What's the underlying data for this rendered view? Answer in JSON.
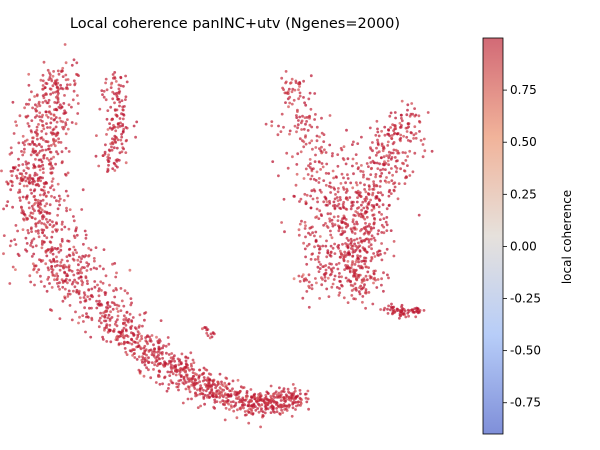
{
  "chart_data": {
    "type": "scatter",
    "title": "Local coherence panINC+utv (Ngenes=2000)",
    "xlabel": "",
    "ylabel": "",
    "axes_visible": false,
    "grid": false,
    "colormap": "coolwarm",
    "point_alpha": 0.7,
    "colorbar": {
      "label": "local coherence",
      "range": [
        -0.9,
        1.0
      ],
      "ticks": [
        "0.75",
        "0.50",
        "0.25",
        "0.00",
        "-0.25",
        "-0.50",
        "-0.75"
      ],
      "tick_values": [
        0.75,
        0.5,
        0.25,
        0.0,
        -0.25,
        -0.5,
        -0.75
      ],
      "placement": "right"
    },
    "xlim": [
      0,
      100
    ],
    "ylim": [
      0,
      100
    ],
    "clusters": [
      {
        "points": 1700,
        "coherence_mean": 0.9,
        "path": [
          [
            8,
            97
          ],
          [
            3,
            80
          ],
          [
            1,
            65
          ],
          [
            4,
            48
          ],
          [
            12,
            38
          ],
          [
            23,
            25
          ],
          [
            33,
            15
          ],
          [
            45,
            8
          ],
          [
            55,
            4
          ],
          [
            66,
            6
          ]
        ],
        "spread": [
          2.5,
          3.5,
          3.5,
          5.0,
          4.0,
          3.0,
          2.5,
          2.5,
          2.0,
          1.5
        ]
      },
      {
        "points": 150,
        "coherence_mean": 0.9,
        "path": [
          [
            21,
            95
          ],
          [
            22,
            82
          ],
          [
            20,
            70
          ]
        ],
        "spread": [
          1.5,
          1.8,
          1.5
        ]
      },
      {
        "points": 450,
        "coherence_mean": 0.9,
        "path": [
          [
            64,
            95
          ],
          [
            67,
            80
          ],
          [
            72,
            65
          ],
          [
            76,
            56
          ],
          [
            74,
            45
          ],
          [
            70,
            38
          ]
        ],
        "spread": [
          1.5,
          3.5,
          4.5,
          5.0,
          4.0,
          3.0
        ]
      },
      {
        "points": 550,
        "coherence_mean": 0.9,
        "path": [
          [
            92,
            85
          ],
          [
            87,
            72
          ],
          [
            82,
            60
          ],
          [
            80,
            45
          ],
          [
            81,
            35
          ]
        ],
        "spread": [
          2.5,
          4.0,
          4.0,
          3.5,
          2.5
        ]
      },
      {
        "points": 70,
        "coherence_mean": 0.92,
        "path": [
          [
            87,
            31
          ],
          [
            91,
            30
          ],
          [
            95,
            30
          ]
        ],
        "spread": [
          0.8,
          0.8,
          0.8
        ]
      },
      {
        "points": 14,
        "coherence_mean": 0.9,
        "path": [
          [
            43,
            26
          ],
          [
            44,
            23
          ]
        ],
        "spread": [
          0.5,
          0.5
        ]
      }
    ]
  }
}
